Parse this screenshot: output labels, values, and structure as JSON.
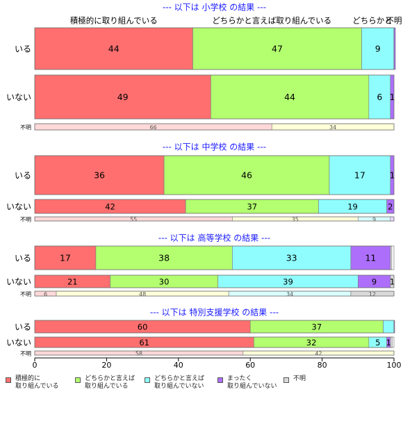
{
  "chart_data": {
    "type": "bar",
    "orientation": "horizontal",
    "stacked": "percent",
    "xlim": [
      0,
      100
    ],
    "xticks": [
      0,
      20,
      40,
      60,
      80,
      100
    ],
    "categories": [
      "積極的に取り組んでいる",
      "どちらかと言えば取り組んでいる",
      "どちらかと言えば取り組んでいない",
      "まったく取り組んでいない",
      "不明"
    ],
    "colors": [
      "#ff6f6f",
      "#b3ff6f",
      "#8ffdfd",
      "#ad6ffb",
      "#d9d9d9"
    ],
    "unknown_colors": [
      "#ffd9d9",
      "#ffffd9",
      "#d9ffff",
      "#e8d9ff",
      "#d9d9d9"
    ],
    "top_labels": [
      {
        "text": "積極的に取り組んでいる",
        "value": 22
      },
      {
        "text": "どちらかと言えば取り組んでいる",
        "value": 66
      },
      {
        "text": "どちらかと",
        "value": 94
      },
      {
        "text": "不明",
        "value": 100
      }
    ],
    "panels": [
      {
        "title": "--- 以下は 小学校 の結果 ---",
        "rows": [
          {
            "label": "いる",
            "values": [
              44,
              47,
              9,
              0.4,
              0
            ],
            "labels": [
              "44",
              "47",
              "9",
              "",
              ""
            ]
          },
          {
            "label": "いない",
            "values": [
              49,
              44,
              6,
              1,
              0
            ],
            "labels": [
              "49",
              "44",
              "6",
              "1",
              ""
            ]
          },
          {
            "label": "不明",
            "values": [
              66,
              34,
              0,
              0,
              0
            ],
            "labels": [
              "66",
              "34",
              "",
              "",
              ""
            ],
            "unknown": true
          }
        ]
      },
      {
        "title": "--- 以下は 中学校 の結果 ---",
        "rows": [
          {
            "label": "いる",
            "values": [
              36,
              46,
              17,
              1,
              0
            ],
            "labels": [
              "36",
              "46",
              "17",
              "1",
              ""
            ]
          },
          {
            "label": "いない",
            "values": [
              42,
              37,
              19,
              2,
              0
            ],
            "labels": [
              "42",
              "37",
              "19",
              "2",
              ""
            ]
          },
          {
            "label": "不明",
            "values": [
              55,
              35,
              9,
              1,
              0
            ],
            "labels": [
              "55",
              "35",
              "9",
              "",
              ""
            ],
            "unknown": true
          }
        ]
      },
      {
        "title": "--- 以下は 高等学校 の結果 ---",
        "rows": [
          {
            "label": "いる",
            "values": [
              17,
              38,
              33,
              11,
              0.4
            ],
            "labels": [
              "17",
              "38",
              "33",
              "11",
              ""
            ]
          },
          {
            "label": "いない",
            "values": [
              21,
              30,
              39,
              9,
              1
            ],
            "labels": [
              "21",
              "30",
              "39",
              "9",
              "1"
            ]
          },
          {
            "label": "不明",
            "values": [
              6,
              48,
              34,
              0,
              12
            ],
            "labels": [
              "6",
              "48",
              "34",
              "",
              "12"
            ],
            "unknown": true
          }
        ]
      },
      {
        "title": "--- 以下は 特別支援学校 の結果 ---",
        "rows": [
          {
            "label": "いる",
            "values": [
              60,
              37,
              3,
              0.2,
              0
            ],
            "labels": [
              "60",
              "37",
              "",
              "",
              ""
            ]
          },
          {
            "label": "いない",
            "values": [
              61,
              32,
              5,
              1,
              0.5
            ],
            "labels": [
              "61",
              "32",
              "5",
              "1",
              ""
            ]
          },
          {
            "label": "不明",
            "values": [
              58,
              42,
              0,
              0,
              0
            ],
            "labels": [
              "58",
              "42",
              "",
              "",
              ""
            ],
            "unknown": true
          }
        ]
      }
    ],
    "legend": [
      {
        "label": "積極的に\n取り組んでいる",
        "color": "#ff6f6f"
      },
      {
        "label": "どちらかと言えば\n取り組んでいる",
        "color": "#b3ff6f"
      },
      {
        "label": "どちらかと言えば\n取り組んでいない",
        "color": "#8ffdfd"
      },
      {
        "label": "まったく\n取り組んでいない",
        "color": "#ad6ffb"
      },
      {
        "label": "不明",
        "color": "#d9d9d9"
      }
    ]
  }
}
